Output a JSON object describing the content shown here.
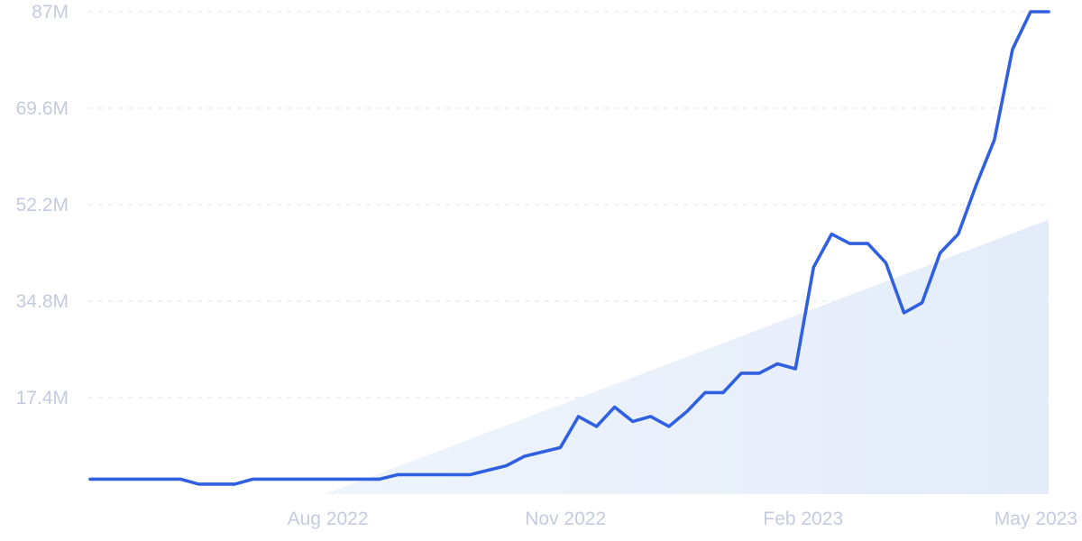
{
  "chart_data": {
    "type": "line",
    "title": "",
    "xlabel": "",
    "ylabel": "",
    "x_ticks": [
      "Aug 2022",
      "Nov 2022",
      "Feb 2023",
      "May 2023"
    ],
    "y_ticks": [
      "17.4M",
      "34.8M",
      "52.2M",
      "69.6M",
      "87M"
    ],
    "ylim": [
      0,
      87000000
    ],
    "xlim": [
      "2022-05-01",
      "2023-05-07"
    ],
    "grid": "horizontal-dashed",
    "colors": {
      "line": "#3060e0",
      "trend_fill": "#e7effb",
      "tick_text": "#c4cbe0",
      "grid": "#e3e6ee"
    },
    "trend": {
      "x": [
        "2022-07-31",
        "2023-05-07"
      ],
      "y": [
        0,
        49500000
      ]
    },
    "series": [
      {
        "x": [
          "2022-05-01",
          "2022-05-08",
          "2022-05-15",
          "2022-05-22",
          "2022-05-29",
          "2022-06-05",
          "2022-06-12",
          "2022-06-19",
          "2022-06-26",
          "2022-07-03",
          "2022-07-10",
          "2022-07-17",
          "2022-07-24",
          "2022-07-31",
          "2022-08-07",
          "2022-08-14",
          "2022-08-21",
          "2022-08-28",
          "2022-09-04",
          "2022-09-11",
          "2022-09-18",
          "2022-09-25",
          "2022-10-02",
          "2022-10-09",
          "2022-10-16",
          "2022-10-23",
          "2022-10-30",
          "2022-11-06",
          "2022-11-13",
          "2022-11-20",
          "2022-11-27",
          "2022-12-04",
          "2022-12-11",
          "2022-12-18",
          "2022-12-25",
          "2023-01-01",
          "2023-01-08",
          "2023-01-15",
          "2023-01-22",
          "2023-01-29",
          "2023-02-05",
          "2023-02-12",
          "2023-02-19",
          "2023-02-26",
          "2023-03-05",
          "2023-03-12",
          "2023-03-19",
          "2023-03-26",
          "2023-04-02",
          "2023-04-09",
          "2023-04-16",
          "2023-04-23",
          "2023-04-30",
          "2023-05-07"
        ],
        "y": [
          2700000,
          2700000,
          2700000,
          2700000,
          2700000,
          2700000,
          1800000,
          1800000,
          1800000,
          2700000,
          2700000,
          2700000,
          2700000,
          2700000,
          2700000,
          2700000,
          2700000,
          3500000,
          3500000,
          3500000,
          3500000,
          3500000,
          4300000,
          5100000,
          6800000,
          7600000,
          8400000,
          14000000,
          12200000,
          15700000,
          13100000,
          14000000,
          12200000,
          14900000,
          18300000,
          18300000,
          21800000,
          21800000,
          23500000,
          22600000,
          40900000,
          46900000,
          45200000,
          45200000,
          41700000,
          32700000,
          34500000,
          43500000,
          46900000,
          55800000,
          63900000,
          80200000,
          87000000,
          87000000
        ]
      }
    ]
  }
}
